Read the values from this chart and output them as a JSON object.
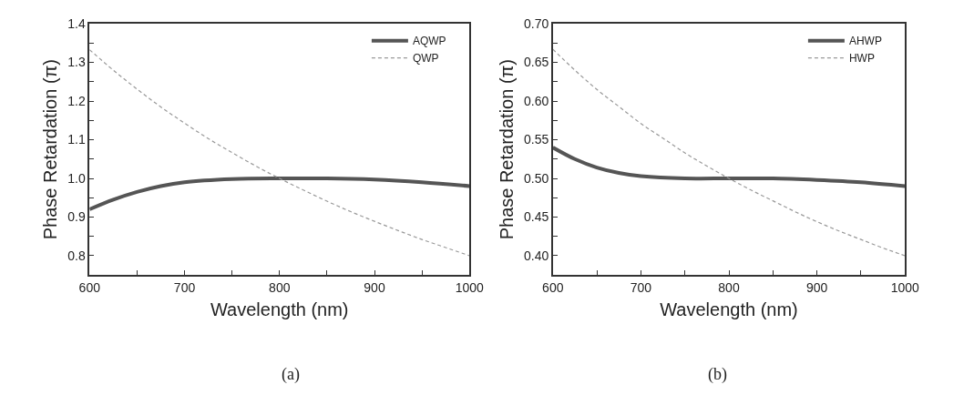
{
  "chart_data": [
    {
      "type": "line",
      "xlabel": "Wavelength (nm)",
      "ylabel": "Phase Retardation (π)",
      "annotations": [
        "(a)"
      ],
      "legend": "top right",
      "xlim": [
        600,
        1000
      ],
      "xticks": [
        600,
        {
          "value": 650,
          "label": null
        },
        700,
        {
          "value": 750,
          "label": null
        },
        800,
        {
          "value": 850,
          "label": null
        },
        900,
        {
          "value": 950,
          "label": null
        },
        1000
      ],
      "ylim": [
        0.75,
        1.4
      ],
      "yticks": [
        0.8,
        {
          "value": 0.85,
          "label": null
        },
        0.9,
        {
          "value": 0.95,
          "label": null
        },
        {
          "value": 1.0,
          "label": "1.0"
        },
        {
          "value": 1.05,
          "label": null
        },
        1.1,
        {
          "value": 1.15,
          "label": null
        },
        1.2,
        {
          "value": 1.25,
          "label": null
        },
        1.3,
        {
          "value": 1.35,
          "label": null
        },
        1.4
      ],
      "series": [
        {
          "name": "AQWP",
          "color": "#555555",
          "line_style": "solid",
          "x": [
            600,
            625,
            650,
            675,
            700,
            750,
            800,
            850,
            900,
            950,
            1000
          ],
          "values": [
            0.92,
            0.945,
            0.965,
            0.98,
            0.99,
            0.998,
            1.0,
            1.0,
            0.997,
            0.99,
            0.98
          ]
        },
        {
          "name": "QWP",
          "color": "#999999",
          "line_style": "dashed",
          "x": [
            600,
            625,
            650,
            675,
            700,
            725,
            750,
            775,
            800,
            825,
            850,
            875,
            900,
            925,
            950,
            975,
            1000
          ],
          "values": [
            1.333,
            1.28,
            1.231,
            1.185,
            1.143,
            1.103,
            1.067,
            1.032,
            1.0,
            0.97,
            0.941,
            0.914,
            0.889,
            0.865,
            0.842,
            0.821,
            0.8
          ]
        }
      ]
    },
    {
      "type": "line",
      "xlabel": "Wavelength (nm)",
      "ylabel": "Phase Retardation (π)",
      "annotations": [
        "(b)"
      ],
      "legend": "top right",
      "xlim": [
        600,
        1000
      ],
      "xticks": [
        600,
        {
          "value": 650,
          "label": null
        },
        700,
        {
          "value": 750,
          "label": null
        },
        800,
        {
          "value": 850,
          "label": null
        },
        900,
        {
          "value": 950,
          "label": null
        },
        1000
      ],
      "ylim": [
        0.375,
        0.7
      ],
      "yticks": [
        {
          "value": 0.4,
          "label": "0.40"
        },
        {
          "value": 0.425,
          "label": null
        },
        0.45,
        {
          "value": 0.475,
          "label": null
        },
        {
          "value": 0.5,
          "label": "0.50"
        },
        {
          "value": 0.525,
          "label": null
        },
        0.55,
        {
          "value": 0.575,
          "label": null
        },
        {
          "value": 0.6,
          "label": "0.60"
        },
        {
          "value": 0.625,
          "label": null
        },
        0.65,
        {
          "value": 0.675,
          "label": null
        },
        {
          "value": 0.7,
          "label": "0.70"
        }
      ],
      "series": [
        {
          "name": "AHWP",
          "color": "#555555",
          "line_style": "solid",
          "x": [
            600,
            625,
            650,
            675,
            700,
            750,
            800,
            850,
            900,
            950,
            1000
          ],
          "values": [
            0.54,
            0.525,
            0.514,
            0.507,
            0.503,
            0.5,
            0.5,
            0.5,
            0.498,
            0.495,
            0.49
          ]
        },
        {
          "name": "HWP",
          "color": "#999999",
          "line_style": "dashed",
          "x": [
            600,
            625,
            650,
            675,
            700,
            725,
            750,
            775,
            800,
            825,
            850,
            875,
            900,
            925,
            950,
            975,
            1000
          ],
          "values": [
            0.667,
            0.64,
            0.615,
            0.593,
            0.571,
            0.552,
            0.533,
            0.516,
            0.5,
            0.485,
            0.471,
            0.457,
            0.444,
            0.432,
            0.421,
            0.41,
            0.4
          ]
        }
      ]
    }
  ]
}
